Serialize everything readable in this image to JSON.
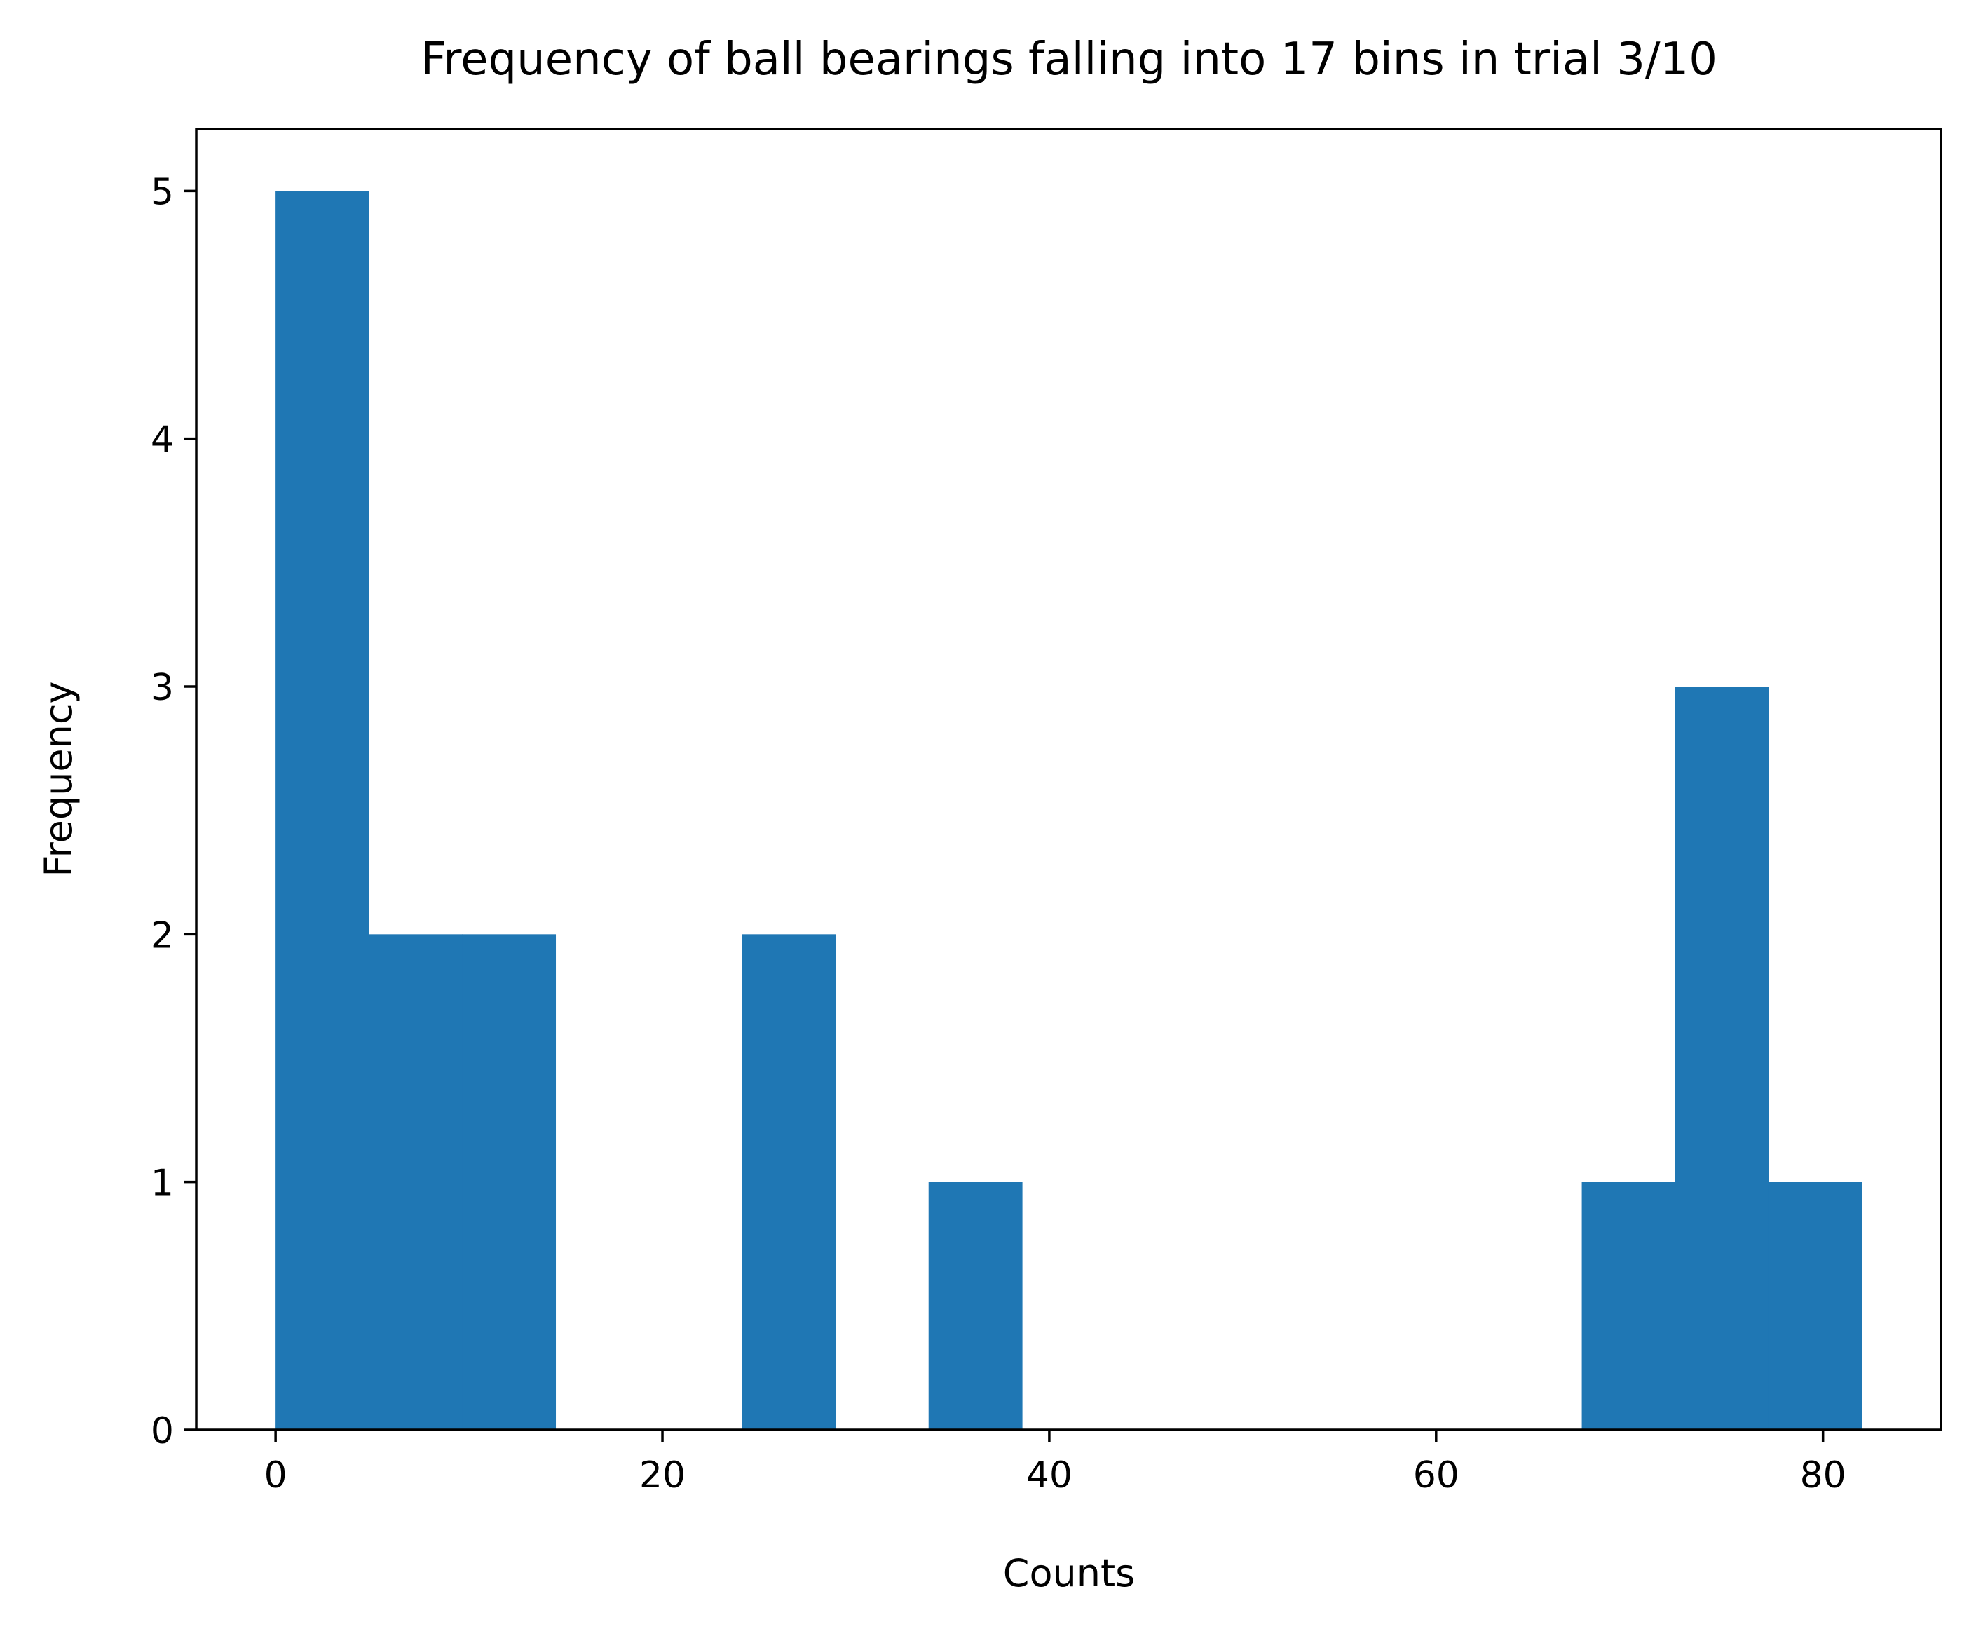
{
  "chart_data": {
    "type": "bar",
    "title": "Frequency of ball bearings falling into 17 bins in trial 3/10",
    "xlabel": "Counts",
    "ylabel": "Frequency",
    "xlim": [
      -4.1,
      86.1
    ],
    "ylim": [
      0,
      5.25
    ],
    "xticks": [
      0,
      20,
      40,
      60,
      80
    ],
    "yticks": [
      0,
      1,
      2,
      3,
      4,
      5
    ],
    "bin_edges": [
      0,
      4.82,
      9.65,
      14.47,
      19.29,
      24.12,
      28.94,
      33.76,
      38.59,
      43.41,
      48.24,
      53.06,
      57.88,
      62.71,
      67.53,
      72.35,
      77.18,
      82
    ],
    "values": [
      5,
      2,
      2,
      0,
      0,
      2,
      0,
      1,
      0,
      0,
      0,
      0,
      0,
      0,
      1,
      3,
      1
    ],
    "grid": false,
    "colors": {
      "bar": "#1f77b4"
    }
  }
}
